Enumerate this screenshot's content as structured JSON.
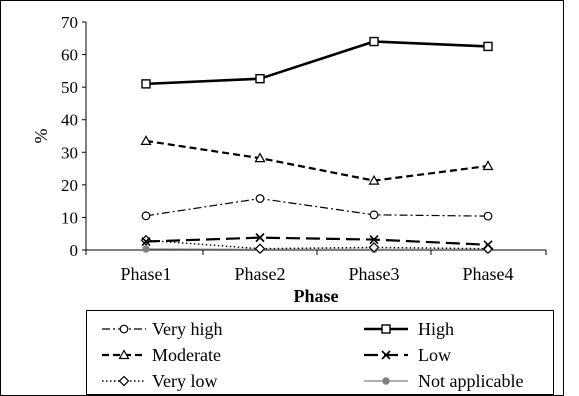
{
  "chart_data": {
    "type": "line",
    "categories": [
      "Phase1",
      "Phase2",
      "Phase3",
      "Phase4"
    ],
    "xlabel": "Phase",
    "ylabel": "%",
    "ylim": [
      0,
      70
    ],
    "yticks": [
      0,
      10,
      20,
      30,
      40,
      50,
      60,
      70
    ],
    "grid": false,
    "legend_position": "bottom",
    "series": [
      {
        "name": "Very high",
        "values": [
          10.5,
          15.8,
          10.8,
          10.4
        ],
        "style": "dash-dot",
        "marker": "circle-open",
        "color": "#000000"
      },
      {
        "name": "High",
        "values": [
          51,
          52.6,
          64,
          62.5
        ],
        "style": "solid-thick",
        "marker": "square-open",
        "color": "#000000"
      },
      {
        "name": "Moderate",
        "values": [
          33.5,
          28.2,
          21.3,
          25.8
        ],
        "style": "dashed",
        "marker": "triangle-open",
        "color": "#000000"
      },
      {
        "name": "Low",
        "values": [
          2.6,
          3.8,
          3.2,
          1.6
        ],
        "style": "long-dash",
        "marker": "x",
        "color": "#000000"
      },
      {
        "name": "Very low",
        "values": [
          3.0,
          0.4,
          0.8,
          0.4
        ],
        "style": "dotted",
        "marker": "diamond-open",
        "color": "#000000"
      },
      {
        "name": "Not applicable",
        "values": [
          0.3,
          0.2,
          0.2,
          0.2
        ],
        "style": "solid-thin",
        "marker": "circle-filled",
        "color": "#808080"
      }
    ]
  }
}
